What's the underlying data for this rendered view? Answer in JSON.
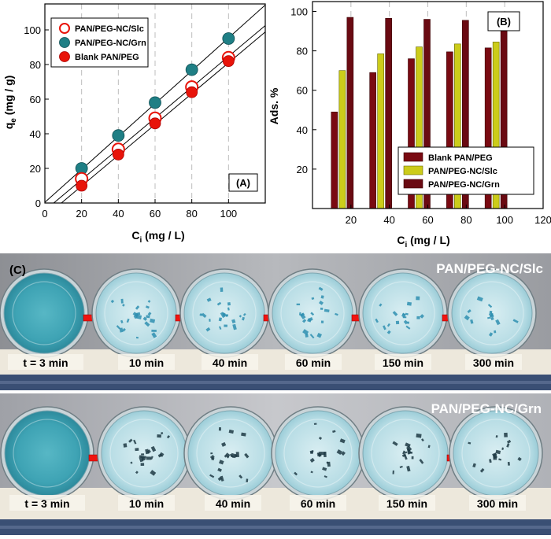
{
  "colors": {
    "red": "#e8140a",
    "teal": "#1f7f85",
    "maroon": "#7a0a12",
    "olive": "#cccc1a",
    "arrow": "#f01410",
    "ledge": "#3a4f74",
    "shelf": "#ede8dc"
  },
  "chart_data": [
    {
      "type": "scatter",
      "panel_label": "(A)",
      "xlabel": "C",
      "xlabel_sub": "i",
      "xlabel_unit": " (mg / L)",
      "ylabel": "q",
      "ylabel_sub": "e",
      "ylabel_unit": " (mg / g)",
      "xlim": [
        0,
        120
      ],
      "ylim": [
        0,
        115
      ],
      "xticks": [
        "0",
        "20",
        "40",
        "60",
        "80",
        "100"
      ],
      "yticks": [
        "0",
        "20",
        "40",
        "60",
        "80",
        "100"
      ],
      "xtick_values": [
        0,
        20,
        40,
        60,
        80,
        100
      ],
      "ytick_values": [
        0,
        20,
        40,
        60,
        80,
        100
      ],
      "legend_position": "top-left",
      "series": [
        {
          "name": "PAN/PEG-NC/Slc",
          "marker": "open-circle",
          "x": [
            20,
            40,
            60,
            80,
            100
          ],
          "y": [
            14,
            31,
            49,
            67,
            84
          ]
        },
        {
          "name": "PAN/PEG-NC/Grn",
          "marker": "filled-teal",
          "x": [
            20,
            40,
            60,
            80,
            100
          ],
          "y": [
            20,
            39,
            58,
            77,
            95
          ]
        },
        {
          "name": "Blank PAN/PEG",
          "marker": "filled-red",
          "x": [
            20,
            40,
            60,
            80,
            100
          ],
          "y": [
            10,
            28,
            46,
            64,
            82
          ]
        }
      ],
      "fit_lines": [
        {
          "name": "fit-grn",
          "x": [
            0,
            120
          ],
          "y": [
            0.4,
            114.4
          ]
        },
        {
          "name": "fit-slc",
          "x": [
            0,
            120
          ],
          "y": [
            -4.3,
            102.5
          ]
        },
        {
          "name": "fit-blank",
          "x": [
            0,
            120
          ],
          "y": [
            -8.0,
            98.8
          ]
        }
      ]
    },
    {
      "type": "bar",
      "panel_label": "(B)",
      "xlabel": "C",
      "xlabel_sub": "i",
      "xlabel_unit": " (mg / L)",
      "ylabel": "Ads. %",
      "xlim": [
        0,
        120
      ],
      "ylim": [
        0,
        105
      ],
      "xticks": [
        "20",
        "40",
        "60",
        "80",
        "100",
        "120"
      ],
      "yticks": [
        "20",
        "40",
        "60",
        "80",
        "100"
      ],
      "xtick_values": [
        20,
        40,
        60,
        80,
        100,
        120
      ],
      "ytick_values": [
        20,
        40,
        60,
        80,
        100
      ],
      "categories": [
        20,
        40,
        60,
        80,
        100
      ],
      "legend_position": "bottom-right",
      "series": [
        {
          "name": "Blank PAN/PEG",
          "values": [
            49,
            69,
            76,
            79.5,
            81.5
          ]
        },
        {
          "name": "PAN/PEG-NC/Slc",
          "values": [
            70,
            78.5,
            82,
            83.5,
            84.5
          ]
        },
        {
          "name": "PAN/PEG-NC/Grn",
          "values": [
            97,
            96.5,
            96,
            95.5,
            94.5
          ]
        }
      ]
    }
  ],
  "photo_panel": {
    "label": "(C)",
    "rows": [
      {
        "title": "PAN/PEG-NC/Slc",
        "times": [
          "t = 3 min",
          "10 min",
          "40 min",
          "60 min",
          "150 min",
          "300 min"
        ]
      },
      {
        "title": "PAN/PEG-NC/Grn",
        "times": [
          "t = 3 min",
          "10 min",
          "40 min",
          "60 min",
          "150 min",
          "300 min"
        ]
      }
    ]
  }
}
